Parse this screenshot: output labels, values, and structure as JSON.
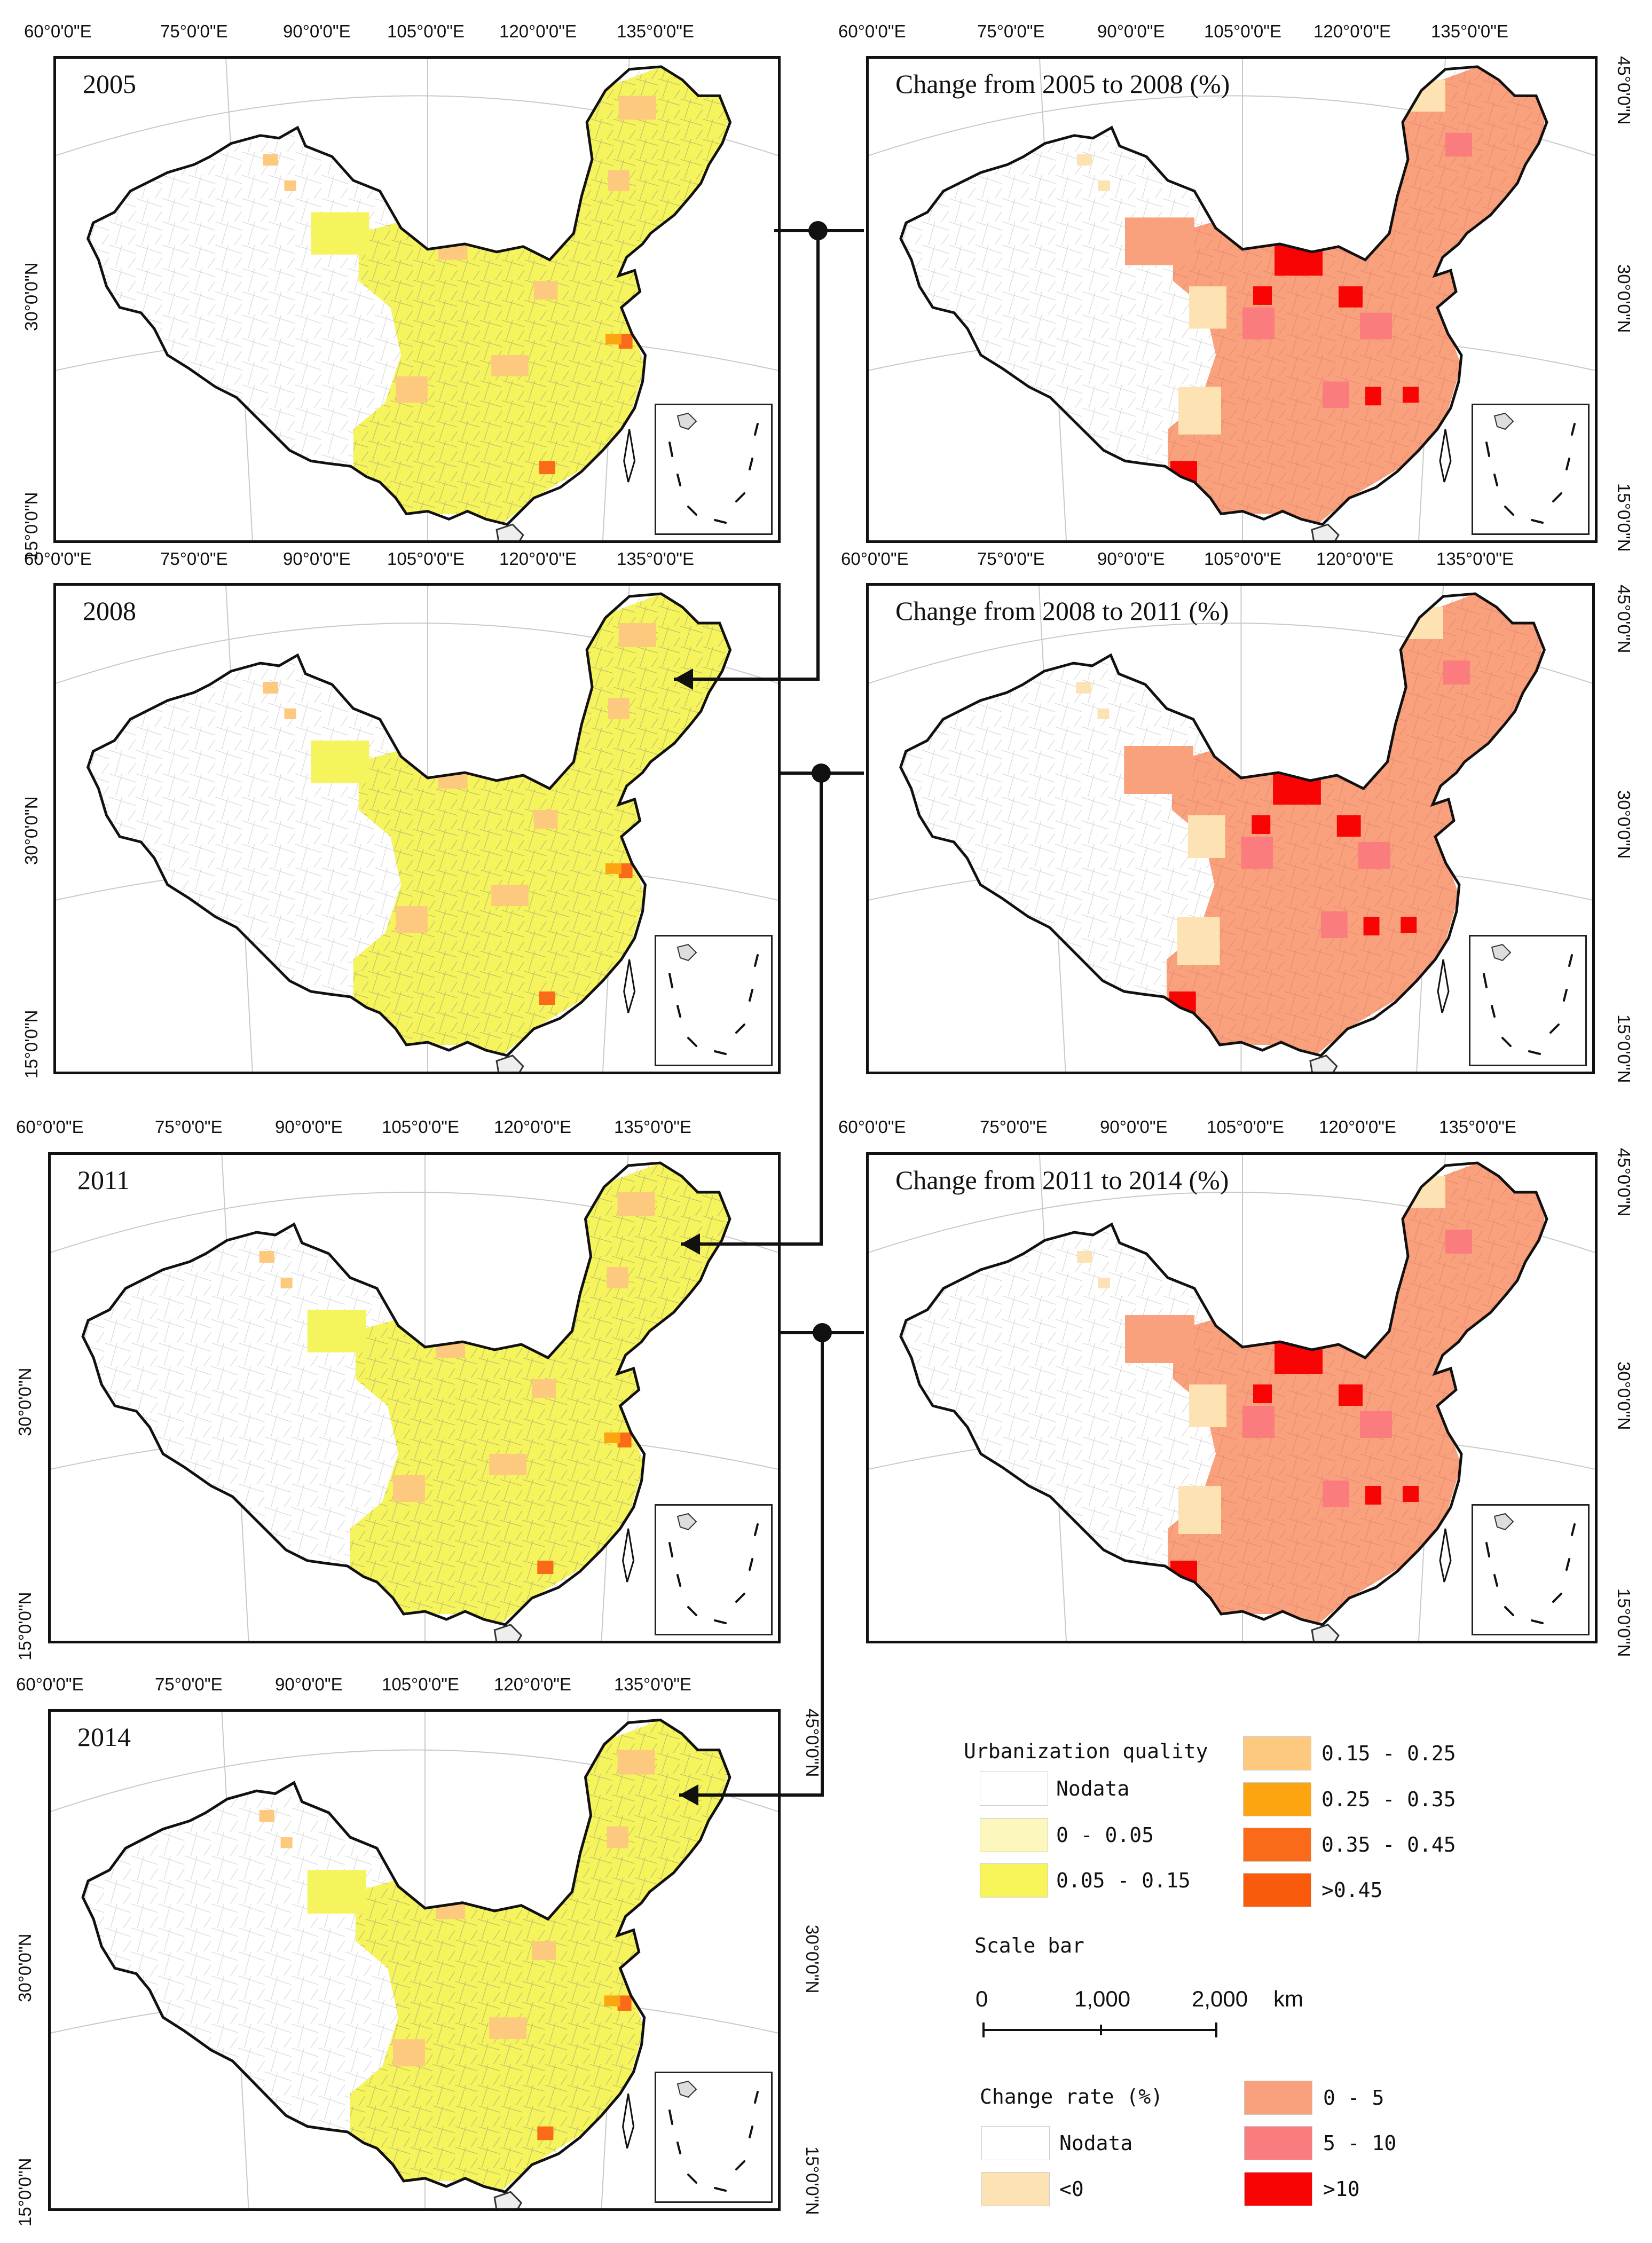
{
  "maps": {
    "p2005": {
      "title": "2005"
    },
    "p2008": {
      "title": "2008"
    },
    "p2011": {
      "title": "2011"
    },
    "p2014": {
      "title": "2014"
    },
    "c0508": {
      "title": "Change from 2005 to 2008 (%)"
    },
    "c0811": {
      "title": "Change from 2008 to 2011 (%)"
    },
    "c1114": {
      "title": "Change from 2011 to 2014 (%)"
    }
  },
  "longitude_labels": [
    "60°0'0\"E",
    "75°0'0\"E",
    "90°0'0\"E",
    "105°0'0\"E",
    "120°0'0\"E",
    "135°0'0\"E"
  ],
  "latitude_labels": {
    "n45": "45°0'0\"N",
    "n30": "30°0'0\"N",
    "n15": "15°0'0\"N"
  },
  "legend_quality": {
    "title": "Urbanization quality",
    "classes": [
      {
        "label": "Nodata",
        "color": "#ffffff"
      },
      {
        "label": "0 - 0.05",
        "color": "#fbf7bd"
      },
      {
        "label": "0.05 - 0.15",
        "color": "#f7f55a"
      },
      {
        "label": "0.15 - 0.25",
        "color": "#fdc97f"
      },
      {
        "label": "0.25 - 0.35",
        "color": "#fca510"
      },
      {
        "label": "0.35 - 0.45",
        "color": "#fb6a18"
      },
      {
        "label": ">0.45",
        "color": "#fa5a0c"
      }
    ]
  },
  "scale_bar": {
    "title": "Scale bar",
    "ticks": [
      "0",
      "1,000",
      "2,000"
    ],
    "unit": "km"
  },
  "legend_change": {
    "title": "Change rate (%)",
    "classes": [
      {
        "label": "Nodata",
        "color": "#ffffff"
      },
      {
        "label": "<0",
        "color": "#fde2b3"
      },
      {
        "label": "0 - 5",
        "color": "#f9a07c"
      },
      {
        "label": "5 - 10",
        "color": "#fa7c7e"
      },
      {
        "label": ">10",
        "color": "#f80404"
      }
    ]
  }
}
